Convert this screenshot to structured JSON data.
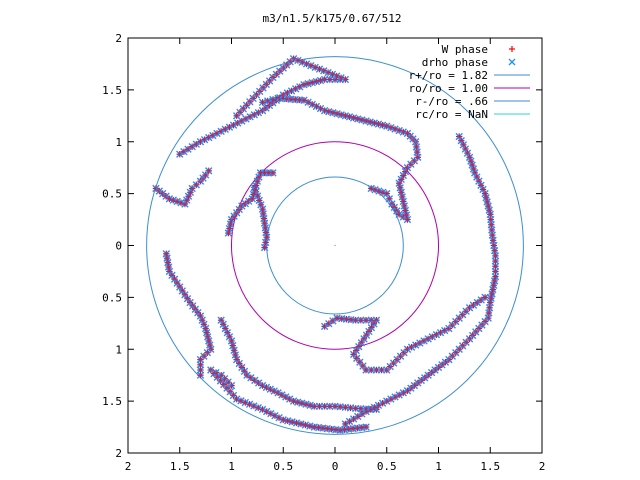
{
  "chart_data": {
    "type": "scatter",
    "title": "m3/n1.5/k175/0.67/512",
    "xlim": [
      -2,
      2
    ],
    "ylim": [
      -2,
      2
    ],
    "x_tick_labels": [
      "2",
      "1.5",
      "1",
      "0.5",
      "0",
      "0.5",
      "1",
      "1.5",
      "2"
    ],
    "y_tick_labels": [
      "2",
      "1.5",
      "1",
      "0.5",
      "0",
      "0.5",
      "1",
      "1.5",
      "2"
    ],
    "legend_position": "top-right",
    "legend": [
      {
        "label": "W phase",
        "kind": "plus",
        "color": "#ff0000"
      },
      {
        "label": "drho phase",
        "kind": "cross",
        "color": "#1e90ff"
      },
      {
        "label": "r+/ro = 1.82",
        "kind": "line",
        "color": "#3b8fd1"
      },
      {
        "label": "ro/ro = 1.00",
        "kind": "line",
        "color": "#b000b0"
      },
      {
        "label": "r-/ro = .66",
        "kind": "line",
        "color": "#3b8fd1"
      },
      {
        "label": "rc/ro = NaN",
        "kind": "line",
        "color": "#30d0d0"
      }
    ],
    "circles": [
      {
        "name": "r+/ro",
        "radius": 1.82,
        "color": "#3b8fd1"
      },
      {
        "name": "ro/ro",
        "radius": 1.0,
        "color": "#b000b0"
      },
      {
        "name": "r-/ro",
        "radius": 0.66,
        "color": "#3b8fd1"
      }
    ],
    "series": [
      {
        "name": "W phase",
        "arms": [
          {
            "points": [
              [
                -0.78,
                0.56
              ],
              [
                -0.7,
                0.35
              ],
              [
                -0.66,
                0.08
              ],
              [
                -0.68,
                -0.02
              ]
            ]
          },
          {
            "points": [
              [
                -1.03,
                0.12
              ],
              [
                -1.0,
                0.25
              ],
              [
                -0.9,
                0.38
              ],
              [
                -0.8,
                0.45
              ],
              [
                -0.75,
                0.62
              ],
              [
                -0.72,
                0.7
              ],
              [
                -0.6,
                0.7
              ]
            ]
          },
          {
            "points": [
              [
                -1.73,
                0.55
              ],
              [
                -1.6,
                0.45
              ],
              [
                -1.45,
                0.4
              ],
              [
                -1.38,
                0.55
              ],
              [
                -1.3,
                0.62
              ],
              [
                -1.25,
                0.68
              ],
              [
                -1.22,
                0.72
              ]
            ]
          },
          {
            "points": [
              [
                -1.63,
                -0.08
              ],
              [
                -1.6,
                -0.25
              ],
              [
                -1.5,
                -0.4
              ],
              [
                -1.4,
                -0.55
              ],
              [
                -1.3,
                -0.68
              ],
              [
                -1.25,
                -0.8
              ],
              [
                -1.2,
                -1.0
              ],
              [
                -1.3,
                -1.1
              ],
              [
                -1.3,
                -1.25
              ]
            ]
          },
          {
            "points": [
              [
                -1.1,
                -0.72
              ],
              [
                -1.0,
                -0.92
              ],
              [
                -0.95,
                -1.1
              ],
              [
                -0.85,
                -1.25
              ],
              [
                -0.7,
                -1.35
              ],
              [
                -0.55,
                -1.42
              ],
              [
                -0.4,
                -1.5
              ],
              [
                -0.2,
                -1.55
              ],
              [
                0.0,
                -1.55
              ],
              [
                0.2,
                -1.57
              ],
              [
                0.4,
                -1.58
              ]
            ]
          },
          {
            "points": [
              [
                -0.1,
                -0.78
              ],
              [
                0.02,
                -0.7
              ],
              [
                0.2,
                -0.72
              ],
              [
                0.4,
                -0.72
              ],
              [
                0.28,
                -0.9
              ],
              [
                0.18,
                -1.05
              ],
              [
                0.3,
                -1.2
              ],
              [
                0.5,
                -1.2
              ],
              [
                0.7,
                -1.0
              ],
              [
                0.9,
                -0.9
              ],
              [
                1.1,
                -0.8
              ],
              [
                1.3,
                -0.6
              ],
              [
                1.45,
                -0.5
              ]
            ]
          },
          {
            "points": [
              [
                0.35,
                0.55
              ],
              [
                0.5,
                0.5
              ],
              [
                0.55,
                0.4
              ],
              [
                0.62,
                0.3
              ],
              [
                0.7,
                0.25
              ],
              [
                0.62,
                0.6
              ],
              [
                0.7,
                0.75
              ],
              [
                0.8,
                0.85
              ],
              [
                0.78,
                1.0
              ],
              [
                0.7,
                1.08
              ],
              [
                0.5,
                1.15
              ],
              [
                0.3,
                1.2
              ],
              [
                0.1,
                1.25
              ],
              [
                -0.1,
                1.3
              ],
              [
                -0.3,
                1.4
              ],
              [
                -0.55,
                1.42
              ],
              [
                -0.7,
                1.38
              ]
            ]
          },
          {
            "points": [
              [
                1.2,
                1.05
              ],
              [
                1.3,
                0.85
              ],
              [
                1.35,
                0.7
              ],
              [
                1.45,
                0.5
              ],
              [
                1.5,
                0.3
              ],
              [
                1.52,
                0.1
              ],
              [
                1.55,
                -0.1
              ],
              [
                1.55,
                -0.3
              ],
              [
                1.5,
                -0.55
              ],
              [
                1.48,
                -0.7
              ],
              [
                1.3,
                -0.9
              ],
              [
                1.1,
                -1.1
              ],
              [
                0.9,
                -1.25
              ],
              [
                0.7,
                -1.4
              ],
              [
                0.5,
                -1.5
              ],
              [
                0.3,
                -1.6
              ],
              [
                0.1,
                -1.72
              ]
            ]
          },
          {
            "points": [
              [
                -1.5,
                0.88
              ],
              [
                -1.3,
                1.0
              ],
              [
                -1.1,
                1.1
              ],
              [
                -0.9,
                1.2
              ],
              [
                -0.7,
                1.3
              ],
              [
                -0.5,
                1.45
              ],
              [
                -0.3,
                1.55
              ],
              [
                -0.1,
                1.6
              ],
              [
                0.1,
                1.6
              ],
              [
                -0.4,
                1.8
              ],
              [
                -0.6,
                1.62
              ],
              [
                -0.95,
                1.25
              ]
            ]
          },
          {
            "points": [
              [
                -1.0,
                -1.35
              ],
              [
                -1.1,
                -1.25
              ],
              [
                -1.2,
                -1.2
              ],
              [
                -0.95,
                -1.48
              ],
              [
                -0.7,
                -1.58
              ],
              [
                -0.5,
                -1.68
              ],
              [
                -0.2,
                -1.75
              ],
              [
                0.05,
                -1.78
              ],
              [
                0.3,
                -1.75
              ]
            ]
          }
        ]
      }
    ],
    "inner_circle_radius": 0.66
  }
}
